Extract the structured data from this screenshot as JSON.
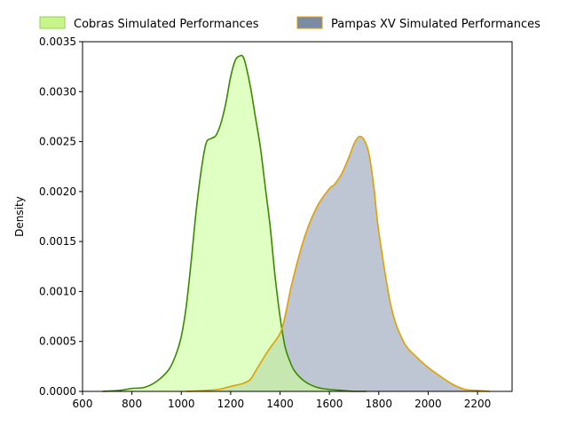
{
  "chart_data": {
    "type": "area",
    "title": "",
    "xlabel": "",
    "ylabel": "Density",
    "xlim": [
      600,
      2340
    ],
    "ylim": [
      0,
      0.0035
    ],
    "xticks": [
      600,
      800,
      1000,
      1200,
      1400,
      1600,
      1800,
      2000,
      2200
    ],
    "yticks": [
      0.0,
      0.0005,
      0.001,
      0.0015,
      0.002,
      0.0025,
      0.003,
      0.0035
    ],
    "xtick_labels": [
      "600",
      "800",
      "1000",
      "1200",
      "1400",
      "1600",
      "1800",
      "2000",
      "2200"
    ],
    "ytick_labels": [
      "0.0000",
      "0.0005",
      "0.0010",
      "0.0015",
      "0.0020",
      "0.0025",
      "0.0030",
      "0.0035"
    ],
    "grid": false,
    "legend": "top, outside plot",
    "series": [
      {
        "name": "Cobras Simulated Performances",
        "fill": "#ccff99",
        "line": "#3a8a00",
        "legend_swatch": "#c7f58a",
        "x": [
          680,
          750,
          800,
          850,
          900,
          950,
          980,
          1000,
          1020,
          1040,
          1060,
          1080,
          1100,
          1120,
          1140,
          1160,
          1180,
          1200,
          1220,
          1240,
          1250,
          1260,
          1280,
          1300,
          1320,
          1340,
          1360,
          1380,
          1400,
          1420,
          1440,
          1460,
          1500,
          1550,
          1600,
          1650,
          1700,
          1750
        ],
        "y": [
          0.0,
          1e-05,
          3e-05,
          4e-05,
          0.0001,
          0.00022,
          0.00038,
          0.00055,
          0.00085,
          0.0013,
          0.0018,
          0.0022,
          0.00248,
          0.00253,
          0.00256,
          0.00268,
          0.00288,
          0.00315,
          0.00332,
          0.00336,
          0.00335,
          0.00328,
          0.00305,
          0.00275,
          0.00245,
          0.00205,
          0.00165,
          0.00115,
          0.00075,
          0.00045,
          0.0003,
          0.0002,
          0.0001,
          4e-05,
          2e-05,
          1e-05,
          0.0,
          0.0
        ]
      },
      {
        "name": "Pampas XV Simulated Performances",
        "fill": "#b4bccb",
        "line": "#e0a000",
        "legend_swatch": "#7d8aa4",
        "x": [
          1020,
          1100,
          1150,
          1200,
          1250,
          1280,
          1300,
          1350,
          1400,
          1420,
          1450,
          1500,
          1550,
          1600,
          1620,
          1650,
          1680,
          1700,
          1720,
          1740,
          1760,
          1780,
          1800,
          1850,
          1900,
          1950,
          2000,
          2050,
          2100,
          2150,
          2200,
          2250
        ],
        "y": [
          0.0,
          1e-05,
          2e-05,
          5e-05,
          8e-05,
          0.00012,
          0.0002,
          0.0004,
          0.00058,
          0.00075,
          0.0011,
          0.00155,
          0.00185,
          0.00203,
          0.00207,
          0.00218,
          0.00235,
          0.00248,
          0.00255,
          0.00252,
          0.00238,
          0.00205,
          0.0016,
          0.00085,
          0.0005,
          0.00035,
          0.00024,
          0.00015,
          7e-05,
          2e-05,
          1e-05,
          0.0
        ]
      }
    ]
  }
}
